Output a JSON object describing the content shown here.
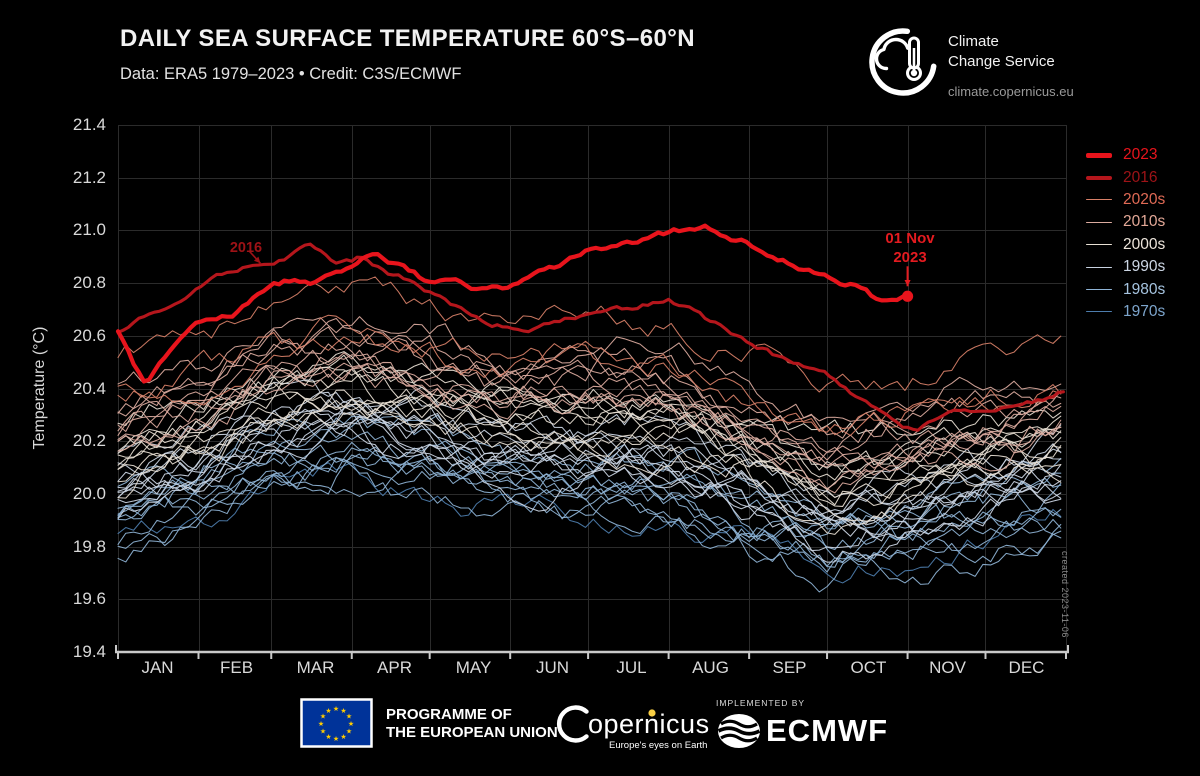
{
  "header": {
    "title": "DAILY SEA SURFACE TEMPERATURE 60°S–60°N",
    "subtitle": "Data: ERA5 1979–2023 • Credit: C3S/ECMWF",
    "logo": {
      "name": "Climate Change Service",
      "line1": "Climate",
      "line2": "Change Service",
      "url_text": "climate.copernicus.eu"
    }
  },
  "chart_data": {
    "type": "line",
    "title": "Daily sea surface temperature 60°S–60°N",
    "ylabel": "Temperature (°C)",
    "ylim": [
      19.4,
      21.4
    ],
    "grid": true,
    "legend_position": "right-outside",
    "y_ticks": [
      "21.4",
      "21.2",
      "21.0",
      "20.8",
      "20.6",
      "20.4",
      "20.2",
      "20.0",
      "19.8",
      "19.6",
      "19.4"
    ],
    "months": [
      "JAN",
      "FEB",
      "MAR",
      "APR",
      "MAY",
      "JUN",
      "JUL",
      "AUG",
      "SEP",
      "OCT",
      "NOV",
      "DEC"
    ],
    "month_start_days": [
      1,
      32,
      60,
      91,
      121,
      152,
      182,
      213,
      244,
      274,
      305,
      335,
      366
    ],
    "series": [
      {
        "name": "2023",
        "color": "#e8141c",
        "width": 4.2,
        "end_dot": [
          305,
          20.75
        ],
        "points": [
          [
            1,
            20.61
          ],
          [
            8,
            20.47
          ],
          [
            12,
            20.42
          ],
          [
            20,
            20.52
          ],
          [
            26,
            20.58
          ],
          [
            32,
            20.64
          ],
          [
            45,
            20.68
          ],
          [
            52,
            20.73
          ],
          [
            60,
            20.79
          ],
          [
            70,
            20.82
          ],
          [
            75,
            20.8
          ],
          [
            83,
            20.84
          ],
          [
            91,
            20.87
          ],
          [
            100,
            20.91
          ],
          [
            106,
            20.88
          ],
          [
            114,
            20.84
          ],
          [
            121,
            20.8
          ],
          [
            130,
            20.81
          ],
          [
            140,
            20.78
          ],
          [
            152,
            20.78
          ],
          [
            160,
            20.82
          ],
          [
            170,
            20.86
          ],
          [
            182,
            20.92
          ],
          [
            195,
            20.95
          ],
          [
            205,
            20.97
          ],
          [
            213,
            20.99
          ],
          [
            222,
            21.01
          ],
          [
            227,
            21.02
          ],
          [
            235,
            20.98
          ],
          [
            244,
            20.95
          ],
          [
            252,
            20.89
          ],
          [
            258,
            20.88
          ],
          [
            265,
            20.85
          ],
          [
            274,
            20.82
          ],
          [
            280,
            20.79
          ],
          [
            288,
            20.78
          ],
          [
            294,
            20.73
          ],
          [
            300,
            20.72
          ],
          [
            303,
            20.73
          ],
          [
            305,
            20.75
          ]
        ]
      },
      {
        "name": "2016",
        "color": "#b5161c",
        "width": 3.1,
        "points": [
          [
            1,
            20.61
          ],
          [
            10,
            20.66
          ],
          [
            21,
            20.7
          ],
          [
            32,
            20.78
          ],
          [
            45,
            20.85
          ],
          [
            55,
            20.87
          ],
          [
            60,
            20.87
          ],
          [
            68,
            20.9
          ],
          [
            74,
            20.95
          ],
          [
            78,
            20.92
          ],
          [
            85,
            20.88
          ],
          [
            91,
            20.89
          ],
          [
            95,
            20.9
          ],
          [
            100,
            20.86
          ],
          [
            110,
            20.82
          ],
          [
            121,
            20.77
          ],
          [
            130,
            20.72
          ],
          [
            140,
            20.67
          ],
          [
            152,
            20.63
          ],
          [
            160,
            20.62
          ],
          [
            170,
            20.65
          ],
          [
            182,
            20.68
          ],
          [
            190,
            20.7
          ],
          [
            200,
            20.71
          ],
          [
            213,
            20.73
          ],
          [
            220,
            20.71
          ],
          [
            230,
            20.65
          ],
          [
            244,
            20.57
          ],
          [
            255,
            20.52
          ],
          [
            265,
            20.49
          ],
          [
            274,
            20.46
          ],
          [
            285,
            20.38
          ],
          [
            295,
            20.3
          ],
          [
            305,
            20.25
          ],
          [
            308,
            20.24
          ],
          [
            315,
            20.28
          ],
          [
            322,
            20.31
          ],
          [
            330,
            20.32
          ],
          [
            340,
            20.33
          ],
          [
            350,
            20.35
          ],
          [
            360,
            20.37
          ],
          [
            366,
            20.4
          ]
        ]
      }
    ],
    "background_years": {
      "description": "One thin line per year 1979–2022 (2016 drawn bold separately), coloured by decade",
      "count": 44,
      "seasonal_shape": [
        -0.12,
        -0.02,
        0.12,
        0.16,
        0.1,
        0.02,
        -0.01,
        -0.02,
        -0.12,
        -0.22,
        -0.18,
        -0.11,
        -0.05
      ],
      "decades": [
        {
          "name": "1970s",
          "years": [
            1979,
            1979
          ],
          "color": "#4d7dad",
          "mean": 19.97
        },
        {
          "name": "1980s",
          "years": [
            1980,
            1989
          ],
          "color": "#8fb4d6",
          "mean": 20.03
        },
        {
          "name": "1990s",
          "years": [
            1990,
            1999
          ],
          "color": "#ccd6e4",
          "mean": 20.13
        },
        {
          "name": "2000s",
          "years": [
            2000,
            2009
          ],
          "color": "#e8e0d4",
          "mean": 20.26
        },
        {
          "name": "2010s",
          "years": [
            2010,
            2019
          ],
          "color": "#dcab9f",
          "mean": 20.38
        },
        {
          "name": "2020s",
          "years": [
            2020,
            2022
          ],
          "color": "#d88068",
          "mean": 20.54
        }
      ]
    },
    "legend": [
      {
        "label": "2023",
        "text_color": "#e8141c",
        "line_color": "#e8141c",
        "thickness": 5
      },
      {
        "label": "2016",
        "text_color": "#9e1317",
        "line_color": "#b5161c",
        "thickness": 4
      },
      {
        "label": "2020s",
        "text_color": "#e06a55",
        "line_color": "#d88068",
        "thickness": 1.5
      },
      {
        "label": "2010s",
        "text_color": "#e3a897",
        "line_color": "#dcab9f",
        "thickness": 1.5
      },
      {
        "label": "2000s",
        "text_color": "#ece4da",
        "line_color": "#e8e0d4",
        "thickness": 1.5
      },
      {
        "label": "1990s",
        "text_color": "#ccd6e4",
        "line_color": "#c8d2e0",
        "thickness": 1.5
      },
      {
        "label": "1980s",
        "text_color": "#a6c4e0",
        "line_color": "#8fb4d6",
        "thickness": 1.5
      },
      {
        "label": "1970s",
        "text_color": "#7da5cc",
        "line_color": "#4d7dad",
        "thickness": 1.5
      }
    ],
    "annotations": {
      "label_2016": "2016",
      "label_2016_target": {
        "day": 57,
        "temp": 20.86
      },
      "nov_line1": "01 Nov",
      "nov_line2": "2023",
      "nov_target": {
        "day": 305,
        "temp": 20.75
      },
      "created_note": "created 2023-11-06"
    }
  },
  "footer": {
    "programme_line1": "PROGRAMME OF",
    "programme_line2": "THE EUROPEAN UNION",
    "copernicus_text": "opernicus",
    "copernicus_tagline": "Europe's eyes on Earth",
    "implemented_by": "IMPLEMENTED BY",
    "ecmwf": "ECMWF"
  }
}
